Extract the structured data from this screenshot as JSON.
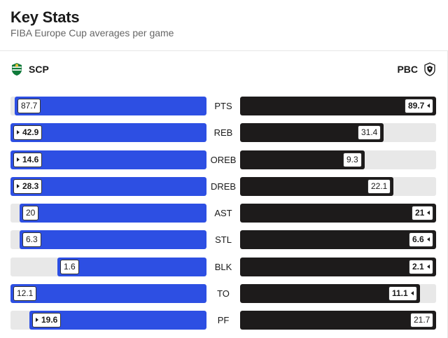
{
  "header": {
    "title": "Key Stats",
    "subtitle": "FIBA Europe Cup averages per game"
  },
  "teams": {
    "home": {
      "name": "SCP",
      "logo_icon": "sporting-cp-lion-icon",
      "color": "#2d4fe3"
    },
    "away": {
      "name": "PBC",
      "logo_icon": "paok-eagle-icon",
      "color": "#1d1b1b"
    }
  },
  "stats": [
    {
      "label": "PTS",
      "home": "87.7",
      "away": "89.7",
      "home_value": 87.7,
      "away_value": 89.7,
      "max": 89.7,
      "leader": "away"
    },
    {
      "label": "REB",
      "home": "42.9",
      "away": "31.4",
      "home_value": 42.9,
      "away_value": 31.4,
      "max": 42.9,
      "leader": "home"
    },
    {
      "label": "OREB",
      "home": "14.6",
      "away": "9.3",
      "home_value": 14.6,
      "away_value": 9.3,
      "max": 14.6,
      "leader": "home"
    },
    {
      "label": "DREB",
      "home": "28.3",
      "away": "22.1",
      "home_value": 28.3,
      "away_value": 22.1,
      "max": 28.3,
      "leader": "home"
    },
    {
      "label": "AST",
      "home": "20",
      "away": "21",
      "home_value": 20,
      "away_value": 21,
      "max": 21,
      "leader": "away"
    },
    {
      "label": "STL",
      "home": "6.3",
      "away": "6.6",
      "home_value": 6.3,
      "away_value": 6.6,
      "max": 6.6,
      "leader": "away"
    },
    {
      "label": "BLK",
      "home": "1.6",
      "away": "2.1",
      "home_value": 1.6,
      "away_value": 2.1,
      "max": 2.1,
      "leader": "away"
    },
    {
      "label": "TO",
      "home": "12.1",
      "away": "11.1",
      "home_value": 12.1,
      "away_value": 11.1,
      "max": 12.1,
      "leader": "away"
    },
    {
      "label": "PF",
      "home": "19.6",
      "away": "21.7",
      "home_value": 19.6,
      "away_value": 21.7,
      "max": 21.7,
      "leader": "home"
    }
  ]
}
